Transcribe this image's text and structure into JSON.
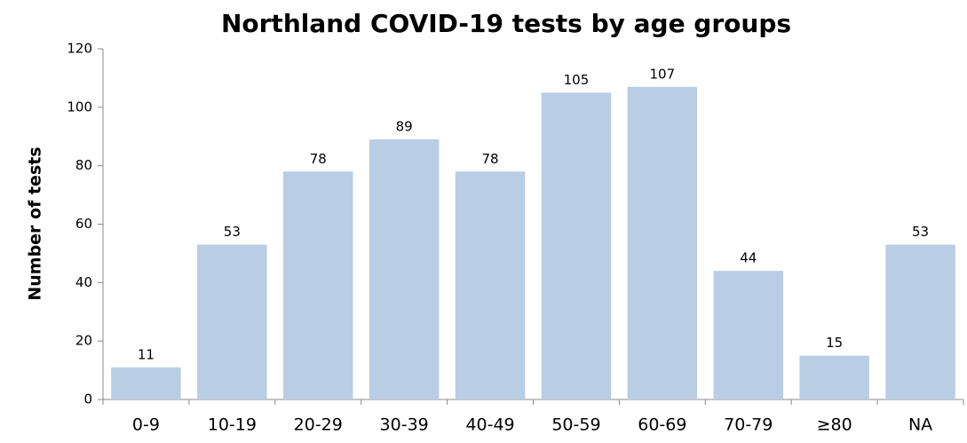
{
  "chart_data": {
    "type": "bar",
    "title": "Northland COVID-19 tests by age groups",
    "y_label": "Number of tests",
    "categories": [
      "0-9",
      "10-19",
      "20-29",
      "30-39",
      "40-49",
      "50-59",
      "60-69",
      "70-79",
      "≥80",
      "NA"
    ],
    "values": [
      11,
      53,
      78,
      89,
      78,
      105,
      107,
      44,
      15,
      53
    ],
    "color": "#b9cde5",
    "ylim": [
      0,
      120
    ],
    "yticks": [
      0,
      20,
      40,
      60,
      80,
      100,
      120
    ],
    "grid": false
  }
}
